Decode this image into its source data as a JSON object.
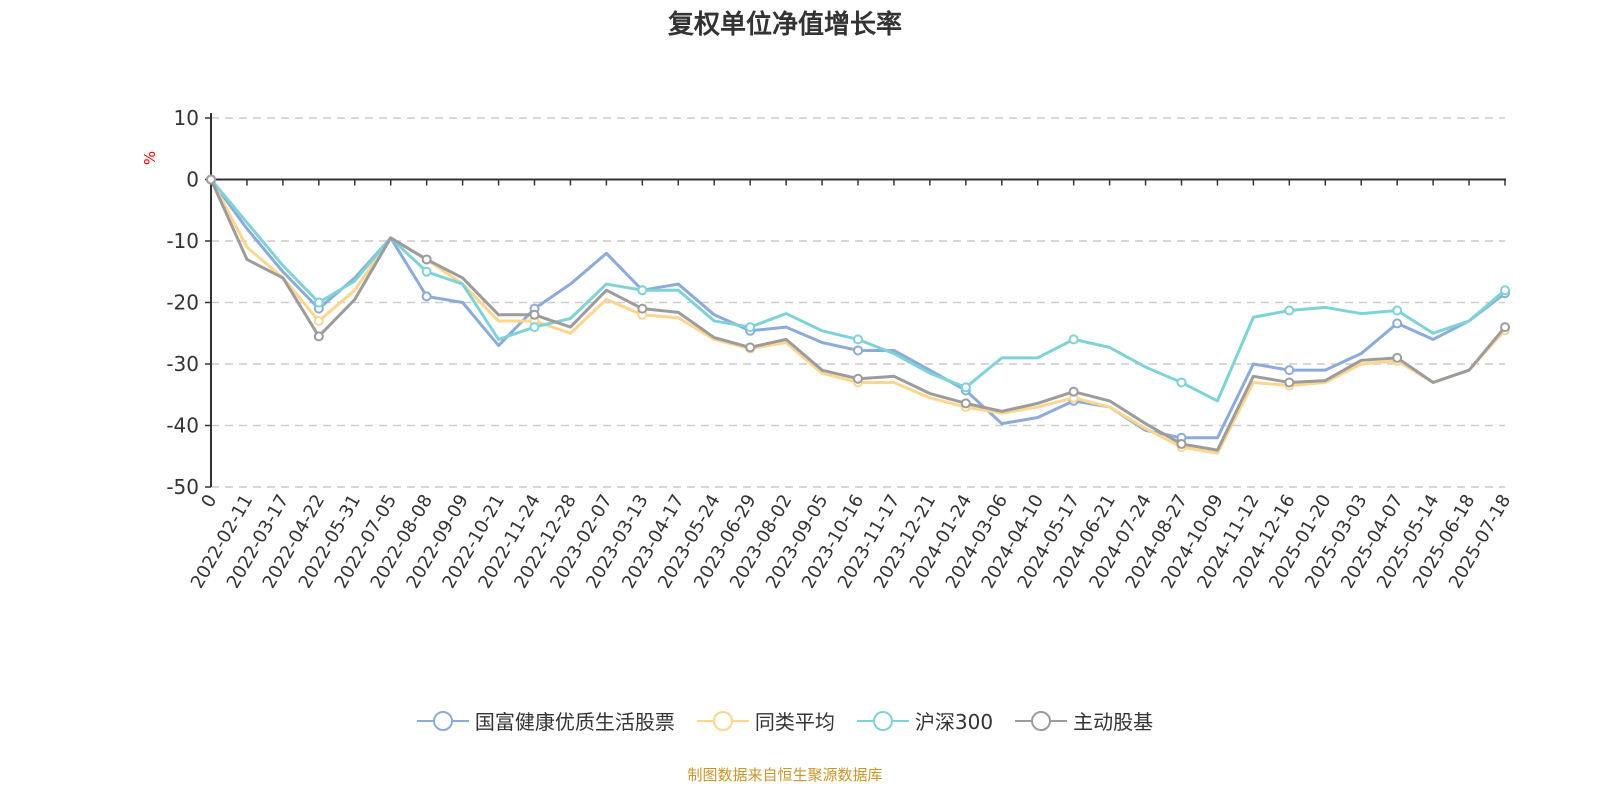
{
  "chart_data": {
    "type": "line",
    "title": "复权单位净值增长率",
    "ylabel": "%",
    "ylim": [
      -50,
      10
    ],
    "yticks": [
      10,
      0,
      -10,
      -20,
      -30,
      -40,
      -50
    ],
    "grid": "horizontal dashed",
    "legend_position": "bottom",
    "categories": [
      "0",
      "2022-02-11",
      "2022-03-17",
      "2022-04-22",
      "2022-05-31",
      "2022-07-05",
      "2022-08-08",
      "2022-09-09",
      "2022-10-21",
      "2022-11-24",
      "2022-12-28",
      "2023-02-07",
      "2023-03-13",
      "2023-04-17",
      "2023-05-24",
      "2023-06-29",
      "2023-08-02",
      "2023-09-05",
      "2023-10-16",
      "2023-11-17",
      "2023-12-21",
      "2024-01-24",
      "2024-03-06",
      "2024-04-10",
      "2024-05-17",
      "2024-06-21",
      "2024-07-24",
      "2024-08-27",
      "2024-10-09",
      "2024-11-12",
      "2024-12-16",
      "2025-01-20",
      "2025-03-03",
      "2025-04-07",
      "2025-05-14",
      "2025-06-18",
      "2025-07-18"
    ],
    "series": [
      {
        "name": "国富健康优质生活股票",
        "color": "#8cabdb",
        "values": [
          0,
          -8,
          -15,
          -21,
          -16,
          -9.5,
          -19,
          -20,
          -27,
          -21,
          -17,
          -12,
          -18,
          -17,
          -22,
          -24.6,
          -24,
          -26.5,
          -27.8,
          -27.8,
          -31,
          -34.3,
          -39.7,
          -38.7,
          -36,
          -37,
          -40.8,
          -42,
          -42,
          -30,
          -31,
          -31,
          -28.3,
          -23.4,
          -26,
          -23,
          -18.5
        ]
      },
      {
        "name": "同类平均",
        "color": "#fcd68f",
        "values": [
          0,
          -11,
          -16,
          -23,
          -18,
          -9.5,
          -13,
          -17,
          -23,
          -23,
          -25,
          -19.5,
          -22,
          -22.5,
          -26,
          -27.5,
          -26.5,
          -31.5,
          -33,
          -33,
          -35.5,
          -37,
          -38,
          -37,
          -35.5,
          -37,
          -40.5,
          -43.5,
          -44.5,
          -33,
          -33.5,
          -33,
          -30,
          -29.5,
          -33,
          -31,
          -24.5
        ]
      },
      {
        "name": "沪深300",
        "color": "#7fd3d6",
        "values": [
          0,
          -7,
          -14,
          -20,
          -16.5,
          -9.5,
          -15,
          -17,
          -26,
          -24,
          -22.6,
          -17,
          -18,
          -18,
          -23,
          -24,
          -21.8,
          -24.6,
          -26,
          -28.3,
          -31.5,
          -33.8,
          -29,
          -29,
          -26,
          -27.3,
          -30.5,
          -33,
          -36,
          -22.4,
          -21.3,
          -20.8,
          -21.8,
          -21.3,
          -25,
          -23,
          -18
        ]
      },
      {
        "name": "主动股基",
        "color": "#9c9c9c",
        "values": [
          0,
          -13,
          -16,
          -25.5,
          -19.5,
          -9.5,
          -13,
          -16,
          -22,
          -22,
          -24,
          -18,
          -21,
          -21.6,
          -25.7,
          -27.3,
          -26,
          -31,
          -32.4,
          -32,
          -34.8,
          -36.4,
          -37.7,
          -36.4,
          -34.5,
          -36,
          -39.7,
          -43,
          -44,
          -32,
          -33,
          -32.7,
          -29.4,
          -29,
          -33,
          -31,
          -24
        ]
      }
    ]
  },
  "source_note": "制图数据来自恒生聚源数据库",
  "axis_label_color": "#ff0000"
}
